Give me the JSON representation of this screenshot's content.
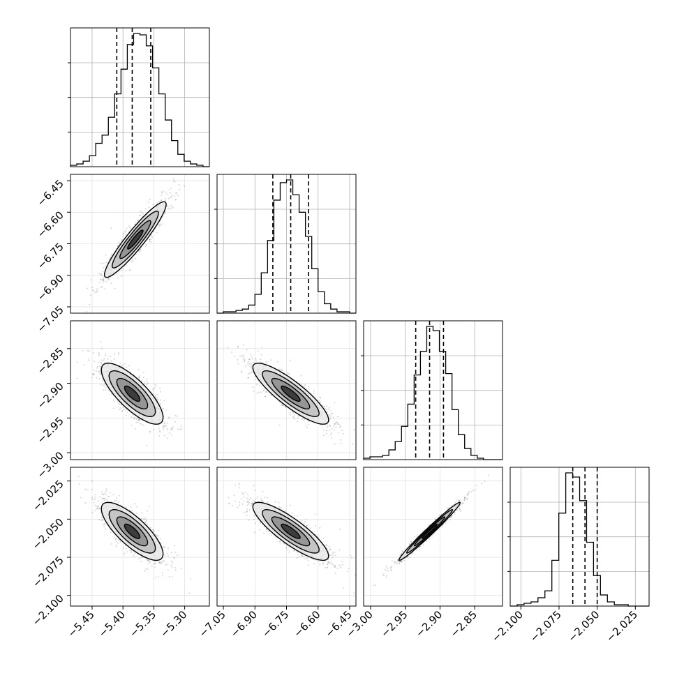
{
  "chart_data": {
    "type": "corner",
    "parameters": [
      {
        "ticks": [
          -5.45,
          -5.4,
          -5.35,
          -5.3
        ],
        "tick_labels": [
          "−5.45",
          "−5.40",
          "−5.35",
          "−5.30"
        ],
        "range": [
          -5.485,
          -5.26
        ]
      },
      {
        "ticks": [
          -7.05,
          -6.9,
          -6.75,
          -6.6,
          -6.45
        ],
        "tick_labels": [
          "−7.05",
          "−6.90",
          "−6.75",
          "−6.60",
          "−6.45"
        ],
        "range": [
          -7.08,
          -6.42
        ]
      },
      {
        "ticks": [
          -3.0,
          -2.95,
          -2.9,
          -2.85
        ],
        "tick_labels": [
          "−3.00",
          "−2.95",
          "−2.90",
          "−2.85"
        ],
        "range": [
          -3.01,
          -2.81
        ]
      },
      {
        "ticks": [
          -2.1,
          -2.075,
          -2.05,
          -2.025
        ],
        "tick_labels": [
          "−2.100",
          "−2.075",
          "−2.050",
          "−2.025"
        ],
        "range": [
          -2.107,
          -2.016
        ]
      }
    ],
    "histograms": [
      {
        "lo": -5.485,
        "hi": -5.26,
        "counts": [
          1,
          2,
          4,
          8,
          17,
          23,
          36,
          53,
          71,
          89,
          97,
          96,
          88,
          72,
          53,
          34,
          19,
          9,
          4,
          2,
          1,
          0
        ],
        "quantiles": [
          -5.41,
          -5.385,
          -5.355
        ]
      },
      {
        "lo": -7.08,
        "hi": -6.42,
        "counts": [
          0,
          1,
          1,
          2,
          3,
          6,
          14,
          30,
          54,
          84,
          97,
          99,
          88,
          75,
          57,
          33,
          16,
          7,
          3,
          1,
          1,
          0
        ],
        "quantiles": [
          -6.815,
          -6.73,
          -6.645
        ]
      },
      {
        "lo": -3.01,
        "hi": -2.81,
        "counts": [
          1,
          2,
          2,
          3,
          7,
          13,
          24,
          40,
          61,
          78,
          96,
          93,
          78,
          62,
          36,
          18,
          8,
          3,
          1,
          0,
          0,
          0
        ],
        "quantiles": [
          -2.935,
          -2.915,
          -2.895
        ]
      },
      {
        "lo": -2.107,
        "hi": -2.016,
        "counts": [
          0,
          1,
          2,
          3,
          6,
          11,
          33,
          67,
          96,
          93,
          76,
          46,
          22,
          8,
          3,
          1,
          1,
          0,
          0,
          0
        ],
        "quantiles": [
          -2.066,
          -2.058,
          -2.05
        ]
      }
    ],
    "pairs": [
      {
        "x": 0,
        "y": 1,
        "mean": [
          -5.38,
          -6.73
        ],
        "sd": [
          0.025,
          0.09
        ],
        "rho": 0.93,
        "spread": 0.022
      },
      {
        "x": 0,
        "y": 2,
        "mean": [
          -5.385,
          -2.915
        ],
        "sd": [
          0.025,
          0.022
        ],
        "rho": -0.78,
        "spread": 0.04
      },
      {
        "x": 1,
        "y": 2,
        "mean": [
          -6.73,
          -2.915
        ],
        "sd": [
          0.09,
          0.022
        ],
        "rho": -0.86,
        "spread": 0.04
      },
      {
        "x": 0,
        "y": 3,
        "mean": [
          -5.385,
          -2.058
        ],
        "sd": [
          0.025,
          0.0095
        ],
        "rho": -0.78,
        "spread": 0.004
      },
      {
        "x": 1,
        "y": 3,
        "mean": [
          -6.73,
          -2.058
        ],
        "sd": [
          0.09,
          0.0095
        ],
        "rho": -0.85,
        "spread": 0.004
      },
      {
        "x": 2,
        "y": 3,
        "mean": [
          -2.915,
          -2.058
        ],
        "sd": [
          0.022,
          0.0095
        ],
        "rho": 0.985,
        "spread": 0.0025
      }
    ],
    "contour_levels": [
      0.5,
      1.0,
      1.5,
      2.0
    ],
    "colors": {
      "line": "#000000",
      "points": "#000000",
      "grid": "#b0b0b0"
    },
    "grid": true
  }
}
